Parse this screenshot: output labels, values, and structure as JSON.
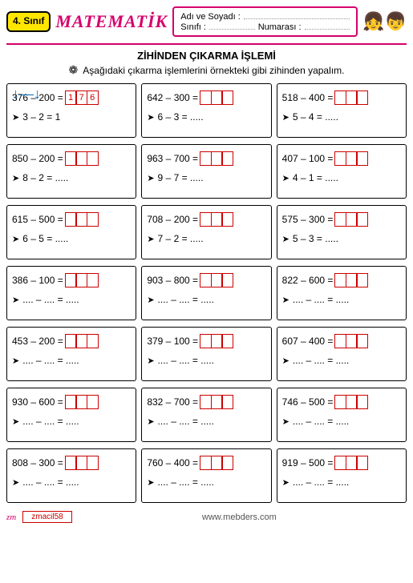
{
  "header": {
    "grade": "4.\nSınıf",
    "subject": "MATEMATİK",
    "nameLabel": "Adı ve Soyadı :",
    "classLabel": "Sınıfı :",
    "numberLabel": "Numarası :"
  },
  "title": "ZİHİNDEN ÇIKARMA  İŞLEMİ",
  "instruction": "Aşağıdaki çıkarma işlemlerini örnekteki gibi zihinden yapalım.",
  "colors": {
    "accent": "#d6006c",
    "boxBorder": "#c00",
    "arrowBlue": "#0066b3",
    "badgeBg": "#ffe600"
  },
  "problems": [
    {
      "a": "376",
      "b": "200",
      "ans": [
        "1",
        "7",
        "6"
      ],
      "hintA": "3",
      "hintB": "2",
      "hintAns": "1",
      "example": true
    },
    {
      "a": "642",
      "b": "300",
      "ans": [
        "",
        "",
        ""
      ],
      "hintA": "6",
      "hintB": "3",
      "hintAns": "....."
    },
    {
      "a": "518",
      "b": "400",
      "ans": [
        "",
        "",
        ""
      ],
      "hintA": "5",
      "hintB": "4",
      "hintAns": "....."
    },
    {
      "a": "850",
      "b": "200",
      "ans": [
        "",
        "",
        ""
      ],
      "hintA": "8",
      "hintB": "2",
      "hintAns": "....."
    },
    {
      "a": "963",
      "b": "700",
      "ans": [
        "",
        "",
        ""
      ],
      "hintA": "9",
      "hintB": "7",
      "hintAns": "....."
    },
    {
      "a": "407",
      "b": "100",
      "ans": [
        "",
        "",
        ""
      ],
      "hintA": "4",
      "hintB": "1",
      "hintAns": "....."
    },
    {
      "a": "615",
      "b": "500",
      "ans": [
        "",
        "",
        ""
      ],
      "hintA": "6",
      "hintB": "5",
      "hintAns": "....."
    },
    {
      "a": "708",
      "b": "200",
      "ans": [
        "",
        "",
        ""
      ],
      "hintA": "7",
      "hintB": "2",
      "hintAns": "....."
    },
    {
      "a": "575",
      "b": "300",
      "ans": [
        "",
        "",
        ""
      ],
      "hintA": "5",
      "hintB": "3",
      "hintAns": "....."
    },
    {
      "a": "386",
      "b": "100",
      "ans": [
        "",
        "",
        ""
      ],
      "hintA": "....",
      "hintB": "....",
      "hintAns": "....."
    },
    {
      "a": "903",
      "b": "800",
      "ans": [
        "",
        "",
        ""
      ],
      "hintA": "....",
      "hintB": "....",
      "hintAns": "....."
    },
    {
      "a": "822",
      "b": "600",
      "ans": [
        "",
        "",
        ""
      ],
      "hintA": "....",
      "hintB": "....",
      "hintAns": "....."
    },
    {
      "a": "453",
      "b": "200",
      "ans": [
        "",
        "",
        ""
      ],
      "hintA": "....",
      "hintB": "....",
      "hintAns": "....."
    },
    {
      "a": "379",
      "b": "100",
      "ans": [
        "",
        "",
        ""
      ],
      "hintA": "....",
      "hintB": "....",
      "hintAns": "....."
    },
    {
      "a": "607",
      "b": "400",
      "ans": [
        "",
        "",
        ""
      ],
      "hintA": "....",
      "hintB": "....",
      "hintAns": "....."
    },
    {
      "a": "930",
      "b": "600",
      "ans": [
        "",
        "",
        ""
      ],
      "hintA": "....",
      "hintB": "....",
      "hintAns": "....."
    },
    {
      "a": "832",
      "b": "700",
      "ans": [
        "",
        "",
        ""
      ],
      "hintA": "....",
      "hintB": "....",
      "hintAns": "....."
    },
    {
      "a": "746",
      "b": "500",
      "ans": [
        "",
        "",
        ""
      ],
      "hintA": "....",
      "hintB": "....",
      "hintAns": "....."
    },
    {
      "a": "808",
      "b": "300",
      "ans": [
        "",
        "",
        ""
      ],
      "hintA": "....",
      "hintB": "....",
      "hintAns": "....."
    },
    {
      "a": "760",
      "b": "400",
      "ans": [
        "",
        "",
        ""
      ],
      "hintA": "....",
      "hintB": "....",
      "hintAns": "....."
    },
    {
      "a": "919",
      "b": "500",
      "ans": [
        "",
        "",
        ""
      ],
      "hintA": "....",
      "hintB": "....",
      "hintAns": "....."
    }
  ],
  "footer": {
    "logo": "zm",
    "code": "zmacil58",
    "url": "www.mebders.com"
  }
}
